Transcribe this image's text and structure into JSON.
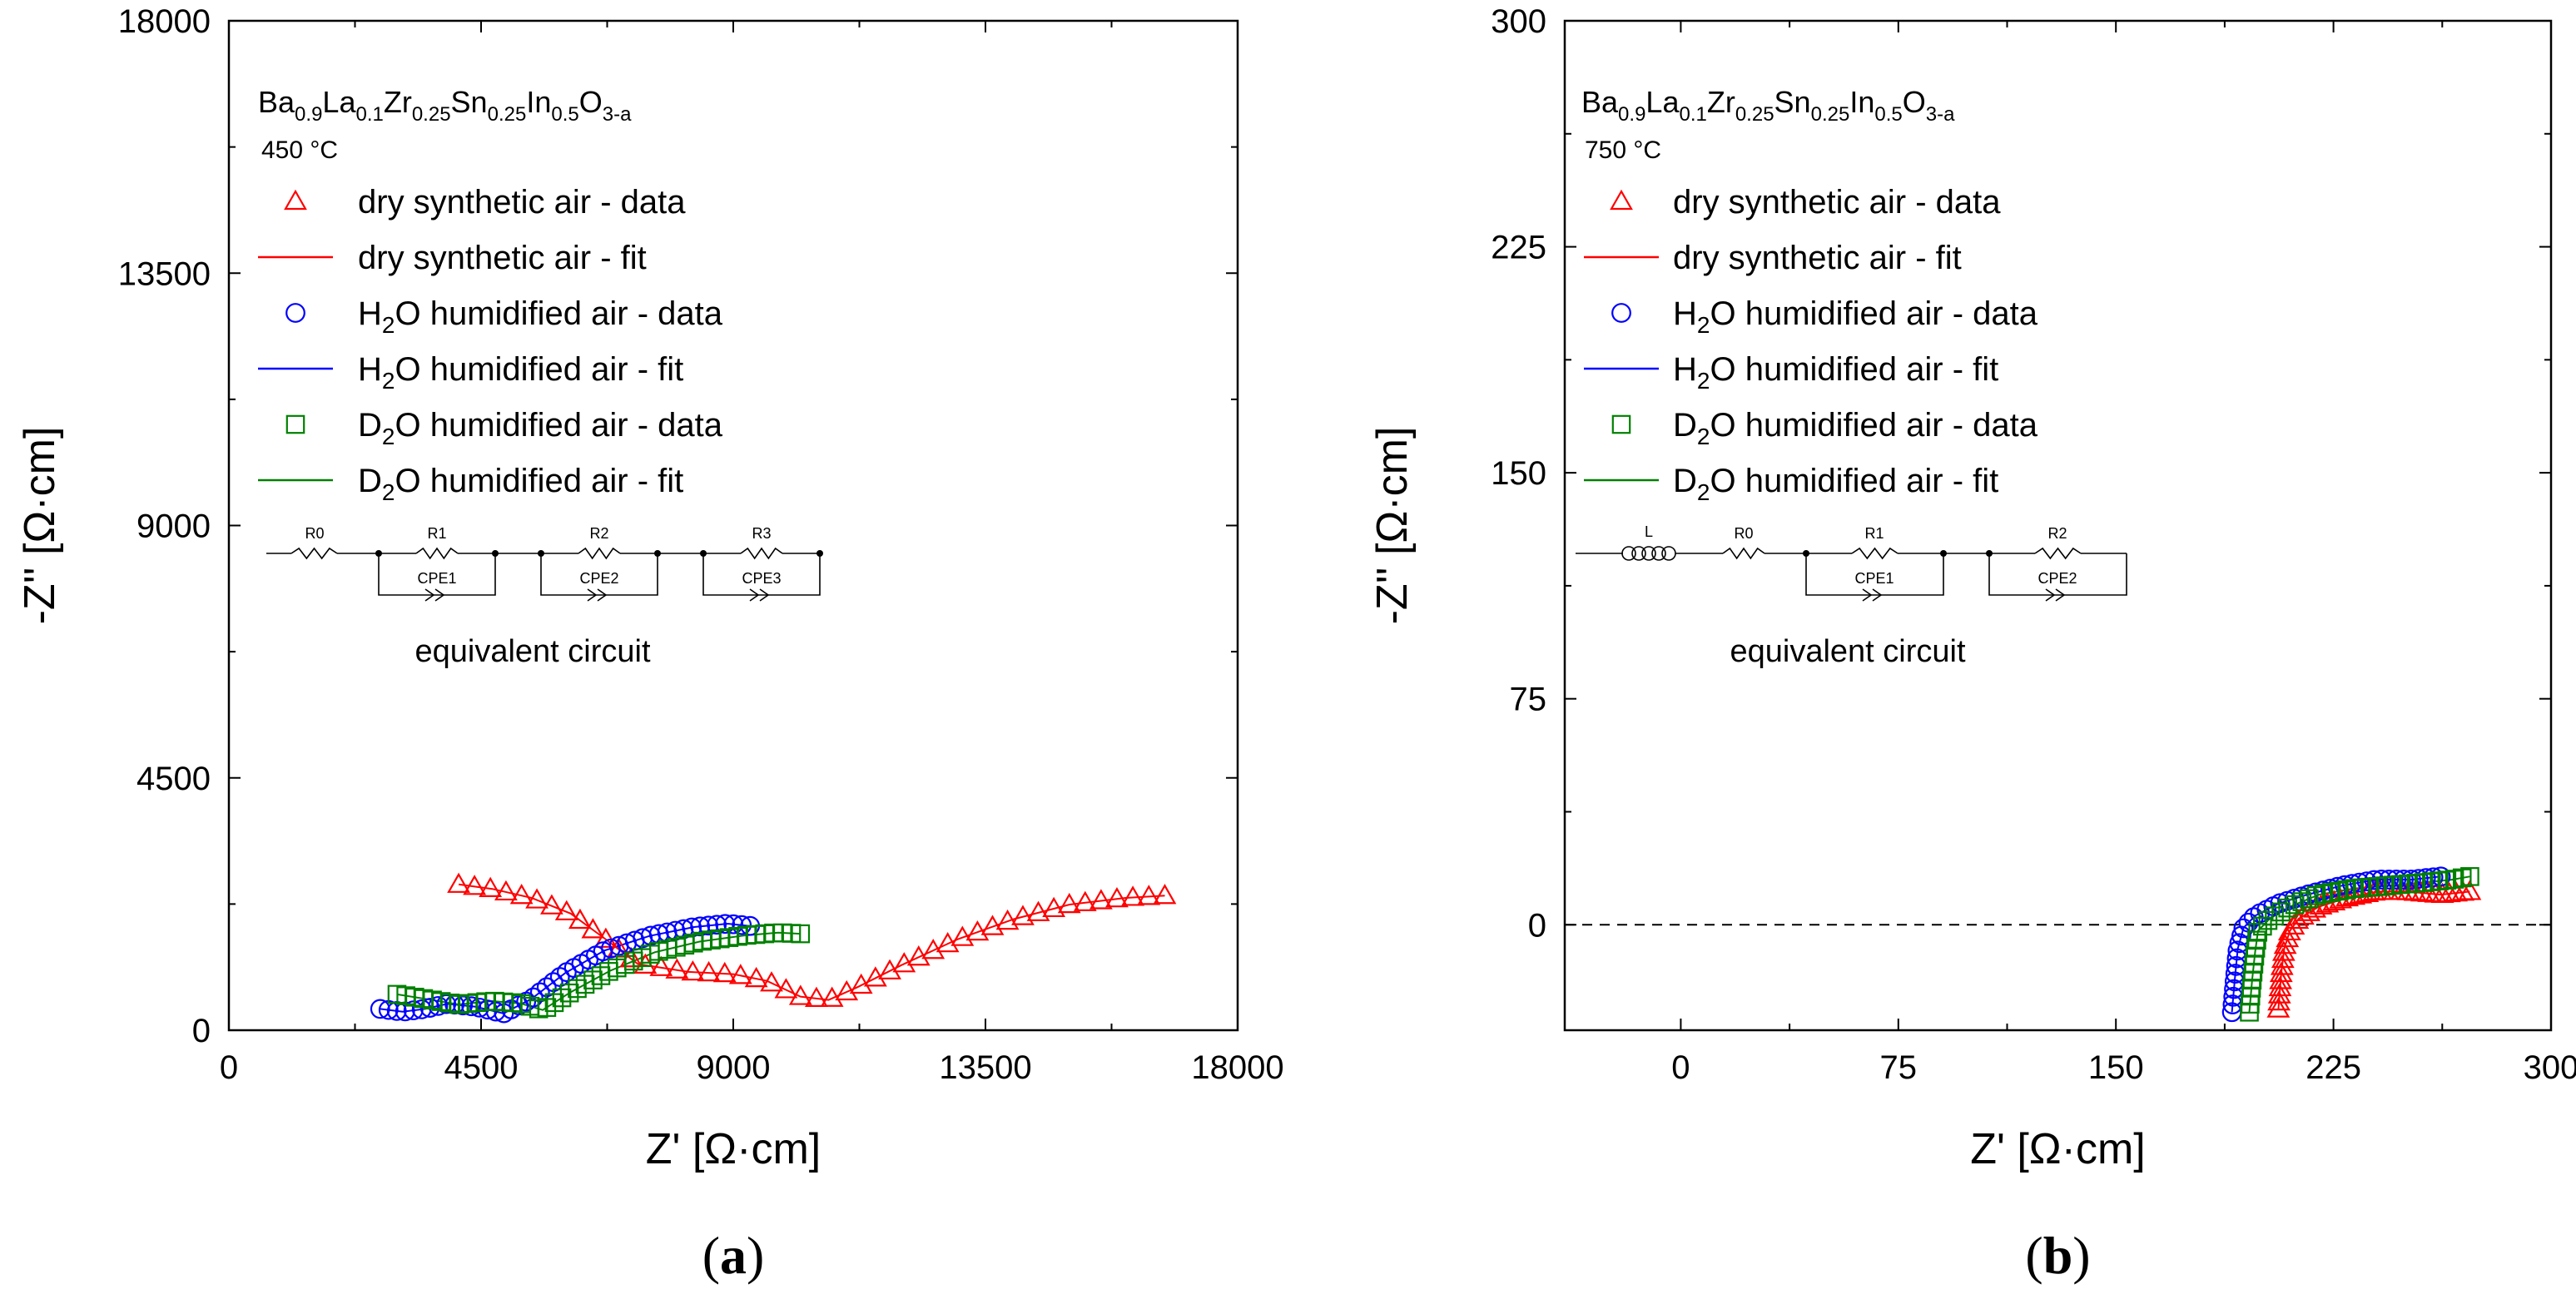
{
  "chart_data": [
    {
      "type": "scatter",
      "panel_label": "(a)",
      "panel_letter": "a",
      "xlabel": "Z' [Ω·cm]",
      "ylabel": "-Z'' [Ω·cm]",
      "xlim": [
        0,
        18000
      ],
      "ylim": [
        0,
        18000
      ],
      "xticks": [
        0,
        4500,
        9000,
        13500,
        18000
      ],
      "yticks": [
        0,
        4500,
        9000,
        13500,
        18000
      ],
      "xtick_labels": [
        "0",
        "4500",
        "9000",
        "13500",
        "18000"
      ],
      "ytick_labels": [
        "0",
        "4500",
        "9000",
        "13500",
        "18000"
      ],
      "composition": {
        "parts": [
          [
            "Ba",
            "0.9"
          ],
          [
            "La",
            "0.1"
          ],
          [
            "Zr",
            "0.25"
          ],
          [
            "Sn",
            "0.25"
          ],
          [
            "In",
            "0.5"
          ],
          [
            "O",
            "3-a"
          ]
        ]
      },
      "temperature": "450 °C",
      "legend": [
        {
          "label_pre": "",
          "label_sub": "",
          "label_post": "dry synthetic air - data",
          "color": "#ff0000",
          "marker": "triangle"
        },
        {
          "label_pre": "",
          "label_sub": "",
          "label_post": "dry synthetic air - fit",
          "color": "#ff0000",
          "marker": "line"
        },
        {
          "label_pre": "H",
          "label_sub": "2",
          "label_post": "O humidified air - data",
          "color": "#0000ff",
          "marker": "circle"
        },
        {
          "label_pre": "H",
          "label_sub": "2",
          "label_post": "O humidified air - fit",
          "color": "#0000ff",
          "marker": "line"
        },
        {
          "label_pre": "D",
          "label_sub": "2",
          "label_post": "O humidified air - data",
          "color": "#008000",
          "marker": "square"
        },
        {
          "label_pre": "D",
          "label_sub": "2",
          "label_post": "O humidified air - fit",
          "color": "#008000",
          "marker": "line"
        }
      ],
      "circuit": {
        "elements": [
          "R0",
          "R1",
          "CPE1",
          "R2",
          "CPE2",
          "R3",
          "CPE3"
        ],
        "caption": "equivalent circuit"
      },
      "series": [
        {
          "name": "dry synthetic air - data",
          "color": "#ff0000",
          "marker": "triangle",
          "knots": [
            [
              4100,
              2600
            ],
            [
              4700,
              2520
            ],
            [
              5400,
              2360
            ],
            [
              6100,
              2080
            ],
            [
              6700,
              1640
            ],
            [
              7300,
              1180
            ],
            [
              8200,
              1040
            ],
            [
              9000,
              1000
            ],
            [
              9600,
              880
            ],
            [
              10200,
              600
            ],
            [
              10700,
              540
            ],
            [
              11200,
              760
            ],
            [
              12000,
              1160
            ],
            [
              13000,
              1620
            ],
            [
              14000,
              1980
            ],
            [
              15000,
              2240
            ],
            [
              16000,
              2360
            ],
            [
              16700,
              2400
            ]
          ]
        },
        {
          "name": "H2O humidified air - data",
          "color": "#0000ff",
          "marker": "circle",
          "knots": [
            [
              2700,
              380
            ],
            [
              3100,
              330
            ],
            [
              3500,
              380
            ],
            [
              3900,
              470
            ],
            [
              4400,
              420
            ],
            [
              4900,
              300
            ],
            [
              5400,
              560
            ],
            [
              6000,
              1020
            ],
            [
              6700,
              1420
            ],
            [
              7500,
              1680
            ],
            [
              8300,
              1840
            ],
            [
              8900,
              1900
            ],
            [
              9300,
              1860
            ]
          ]
        },
        {
          "name": "D2O humidified air - data",
          "color": "#008000",
          "marker": "square",
          "knots": [
            [
              3000,
              640
            ],
            [
              3500,
              560
            ],
            [
              4100,
              460
            ],
            [
              4700,
              520
            ],
            [
              5200,
              480
            ],
            [
              5600,
              360
            ],
            [
              6100,
              680
            ],
            [
              6800,
              1060
            ],
            [
              7600,
              1390
            ],
            [
              8400,
              1580
            ],
            [
              9200,
              1690
            ],
            [
              9800,
              1740
            ],
            [
              10200,
              1720
            ]
          ]
        }
      ],
      "fits": [
        {
          "name": "dry synthetic air - fit",
          "color": "#ff0000",
          "knots": [
            [
              4100,
              2600
            ],
            [
              4700,
              2520
            ],
            [
              5400,
              2360
            ],
            [
              6100,
              2080
            ],
            [
              6700,
              1640
            ],
            [
              7300,
              1180
            ],
            [
              8200,
              1040
            ],
            [
              9000,
              1000
            ],
            [
              9600,
              880
            ],
            [
              10200,
              600
            ],
            [
              10700,
              540
            ],
            [
              11200,
              760
            ],
            [
              12000,
              1160
            ],
            [
              13000,
              1620
            ],
            [
              14000,
              1980
            ],
            [
              15000,
              2240
            ],
            [
              16000,
              2360
            ],
            [
              16700,
              2400
            ]
          ]
        },
        {
          "name": "H2O humidified air - fit",
          "color": "#0000ff",
          "knots": [
            [
              2700,
              380
            ],
            [
              3100,
              330
            ],
            [
              3500,
              380
            ],
            [
              3900,
              470
            ],
            [
              4400,
              420
            ],
            [
              4900,
              300
            ],
            [
              5400,
              560
            ],
            [
              6000,
              1020
            ],
            [
              6700,
              1420
            ],
            [
              7500,
              1680
            ],
            [
              8300,
              1840
            ],
            [
              8900,
              1900
            ],
            [
              9300,
              1860
            ]
          ]
        },
        {
          "name": "D2O humidified air - fit",
          "color": "#008000",
          "knots": [
            [
              3000,
              640
            ],
            [
              3500,
              560
            ],
            [
              4100,
              460
            ],
            [
              4700,
              520
            ],
            [
              5200,
              480
            ],
            [
              5600,
              360
            ],
            [
              6100,
              680
            ],
            [
              6800,
              1060
            ],
            [
              7600,
              1390
            ],
            [
              8400,
              1580
            ],
            [
              9200,
              1690
            ],
            [
              9800,
              1740
            ],
            [
              10200,
              1720
            ]
          ]
        }
      ]
    },
    {
      "type": "scatter",
      "panel_label": "(b)",
      "panel_letter": "b",
      "xlabel": "Z' [Ω·cm]",
      "ylabel": "-Z'' [Ω·cm]",
      "xlim": [
        -40,
        300
      ],
      "ylim": [
        -35,
        300
      ],
      "xticks": [
        0,
        75,
        150,
        225,
        300
      ],
      "yticks": [
        0,
        75,
        150,
        225,
        300
      ],
      "xtick_labels": [
        "0",
        "75",
        "150",
        "225",
        "300"
      ],
      "ytick_labels": [
        "0",
        "75",
        "150",
        "225",
        "300"
      ],
      "zero_line": 0,
      "composition": {
        "parts": [
          [
            "Ba",
            "0.9"
          ],
          [
            "La",
            "0.1"
          ],
          [
            "Zr",
            "0.25"
          ],
          [
            "Sn",
            "0.25"
          ],
          [
            "In",
            "0.5"
          ],
          [
            "O",
            "3-a"
          ]
        ]
      },
      "temperature": "750 °C",
      "legend": [
        {
          "label_pre": "",
          "label_sub": "",
          "label_post": "dry synthetic air - data",
          "color": "#ff0000",
          "marker": "triangle"
        },
        {
          "label_pre": "",
          "label_sub": "",
          "label_post": "dry synthetic air - fit",
          "color": "#ff0000",
          "marker": "line"
        },
        {
          "label_pre": "H",
          "label_sub": "2",
          "label_post": "O humidified air - data",
          "color": "#0000ff",
          "marker": "circle"
        },
        {
          "label_pre": "H",
          "label_sub": "2",
          "label_post": "O humidified air - fit",
          "color": "#0000ff",
          "marker": "line"
        },
        {
          "label_pre": "D",
          "label_sub": "2",
          "label_post": "O humidified air - data",
          "color": "#008000",
          "marker": "square"
        },
        {
          "label_pre": "D",
          "label_sub": "2",
          "label_post": "O humidified air - fit",
          "color": "#008000",
          "marker": "line"
        }
      ],
      "circuit": {
        "elements": [
          "L",
          "R0",
          "R1",
          "CPE1",
          "R2",
          "CPE2"
        ],
        "caption": "equivalent circuit"
      },
      "series": [
        {
          "name": "dry synthetic air - data",
          "color": "#ff0000",
          "marker": "triangle",
          "knots": [
            [
              206,
              -28
            ],
            [
              207,
              -16
            ],
            [
              208,
              -8
            ],
            [
              210,
              -2
            ],
            [
              213,
              2
            ],
            [
              220,
              6
            ],
            [
              230,
              9
            ],
            [
              240,
              11
            ],
            [
              250,
              11
            ],
            [
              262,
              10
            ],
            [
              272,
              11
            ]
          ]
        },
        {
          "name": "H2O humidified air - data",
          "color": "#0000ff",
          "marker": "circle",
          "knots": [
            [
              190,
              -29
            ],
            [
              191,
              -18
            ],
            [
              192,
              -8
            ],
            [
              194,
              -1
            ],
            [
              198,
              3
            ],
            [
              206,
              7
            ],
            [
              216,
              10
            ],
            [
              228,
              13
            ],
            [
              240,
              15
            ],
            [
              252,
              15
            ],
            [
              262,
              16
            ]
          ]
        },
        {
          "name": "D2O humidified air - data",
          "color": "#008000",
          "marker": "square",
          "knots": [
            [
              196,
              -29
            ],
            [
              197,
              -18
            ],
            [
              198,
              -9
            ],
            [
              199,
              -2
            ],
            [
              203,
              2
            ],
            [
              210,
              6
            ],
            [
              220,
              10
            ],
            [
              232,
              12
            ],
            [
              244,
              13
            ],
            [
              256,
              14
            ],
            [
              266,
              15
            ],
            [
              272,
              16
            ]
          ]
        }
      ],
      "fits": [
        {
          "name": "dry synthetic air - fit",
          "color": "#ff0000",
          "knots": [
            [
              206,
              -28
            ],
            [
              207,
              -16
            ],
            [
              208,
              -8
            ],
            [
              210,
              -2
            ],
            [
              213,
              2
            ],
            [
              220,
              6
            ],
            [
              230,
              9
            ],
            [
              240,
              11
            ],
            [
              250,
              11
            ],
            [
              262,
              10
            ],
            [
              272,
              11
            ]
          ]
        },
        {
          "name": "H2O humidified air - fit",
          "color": "#0000ff",
          "knots": [
            [
              190,
              -29
            ],
            [
              191,
              -18
            ],
            [
              192,
              -8
            ],
            [
              194,
              -1
            ],
            [
              198,
              3
            ],
            [
              206,
              7
            ],
            [
              216,
              10
            ],
            [
              228,
              13
            ],
            [
              240,
              15
            ],
            [
              252,
              15
            ],
            [
              262,
              16
            ]
          ]
        },
        {
          "name": "D2O humidified air - fit",
          "color": "#008000",
          "knots": [
            [
              196,
              -29
            ],
            [
              197,
              -18
            ],
            [
              198,
              -9
            ],
            [
              199,
              -2
            ],
            [
              203,
              2
            ],
            [
              210,
              6
            ],
            [
              220,
              10
            ],
            [
              232,
              12
            ],
            [
              244,
              13
            ],
            [
              256,
              14
            ],
            [
              266,
              15
            ],
            [
              272,
              16
            ]
          ]
        }
      ]
    }
  ]
}
